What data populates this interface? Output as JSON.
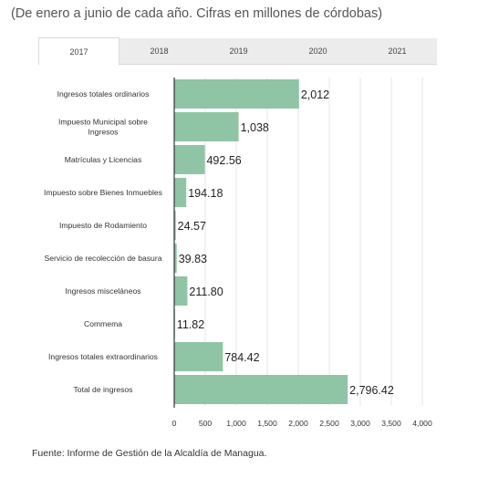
{
  "subtitle": "(De enero a junio de cada año. Cifras en millones de córdobas)",
  "tabs": [
    {
      "label": "2017",
      "active": true
    },
    {
      "label": "2018",
      "active": false
    },
    {
      "label": "2019",
      "active": false
    },
    {
      "label": "2020",
      "active": false
    },
    {
      "label": "2021",
      "active": false
    }
  ],
  "colors": {
    "bar": "#8fc5a5",
    "grid": "#e6e6e6",
    "axis": "#333333"
  },
  "chart_data": {
    "type": "bar",
    "orientation": "horizontal",
    "categories": [
      "Ingresos totales ordinarios",
      "Impuesto Municipal sobre Ingresos",
      "Matrículas y Licencias",
      "Impuesto sobre Bienes Inmuebles",
      "Impuesto de Rodamiento",
      "Servicio de recolección de basura",
      "Ingresos misceláneos",
      "Commema",
      "Ingresos totales extraordinarios",
      "Total de ingresos"
    ],
    "category_lines": [
      [
        "Ingresos totales ordinarios"
      ],
      [
        "Impuesto Municipal sobre",
        "Ingresos"
      ],
      [
        "Matrículas y Licencias"
      ],
      [
        "Impuesto sobre Bienes Inmuebles"
      ],
      [
        "Impuesto de Rodamiento"
      ],
      [
        "Servicio de recolección de basura"
      ],
      [
        "Ingresos misceláneos"
      ],
      [
        "Commema"
      ],
      [
        "Ingresos totales extraordinarios"
      ],
      [
        "Total de ingresos"
      ]
    ],
    "values": [
      2012,
      1038,
      492.56,
      194.18,
      24.57,
      39.83,
      211.8,
      11.82,
      784.42,
      2796.42
    ],
    "value_labels": [
      "2,012",
      "1,038",
      "492.56",
      "194.18",
      "24.57",
      "39.83",
      "211.80",
      "11.82",
      "784.42",
      "2,796.42"
    ],
    "xlim": [
      0,
      4000
    ],
    "xticks": [
      0,
      500,
      1000,
      1500,
      2000,
      2500,
      3000,
      3500,
      4000
    ],
    "xtick_labels": [
      "0",
      "500",
      "1,000",
      "1,500",
      "2,000",
      "2,500",
      "3,000",
      "3,500",
      "4,000"
    ],
    "grid": true
  },
  "source": "Fuente: Informe de Gestión de la Alcaldía de Managua."
}
